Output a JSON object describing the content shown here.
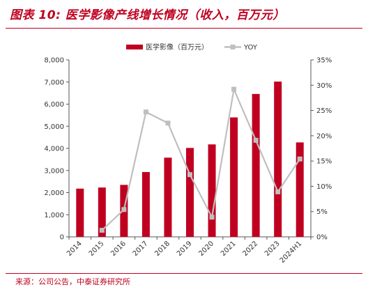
{
  "title": "图表 10:  医学影像产线增长情况（收入，百万元）",
  "source": "来源：公司公告，中泰证券研究所",
  "colors": {
    "bar": "#c00020",
    "line": "#bfbfbf",
    "accent": "#c00020"
  },
  "chart_data": {
    "type": "bar",
    "categories": [
      "2014",
      "2015",
      "2016",
      "2017",
      "2018",
      "2019",
      "2020",
      "2021",
      "2022",
      "2023",
      "2024H1"
    ],
    "series": [
      {
        "name": "医学影像（百万元）",
        "type": "bar",
        "axis": "left",
        "values": [
          2180,
          2230,
          2350,
          2930,
          3580,
          4020,
          4180,
          5400,
          6460,
          7020,
          4270
        ]
      },
      {
        "name": "YOY",
        "type": "line",
        "axis": "right",
        "values": [
          null,
          1.3,
          5.4,
          24.7,
          22.5,
          12.3,
          3.9,
          29.2,
          19.1,
          8.9,
          15.4
        ]
      }
    ],
    "y_left": {
      "min": 0,
      "max": 8000,
      "step": 1000,
      "tick_labels": [
        "0",
        "1,000",
        "2,000",
        "3,000",
        "4,000",
        "5,000",
        "6,000",
        "7,000",
        "8,000"
      ]
    },
    "y_right": {
      "min": 0,
      "max": 35,
      "step": 5,
      "tick_labels": [
        "0%",
        "5%",
        "10%",
        "15%",
        "20%",
        "25%",
        "30%",
        "35%"
      ]
    },
    "legend_position": "top-center",
    "grid": false
  }
}
